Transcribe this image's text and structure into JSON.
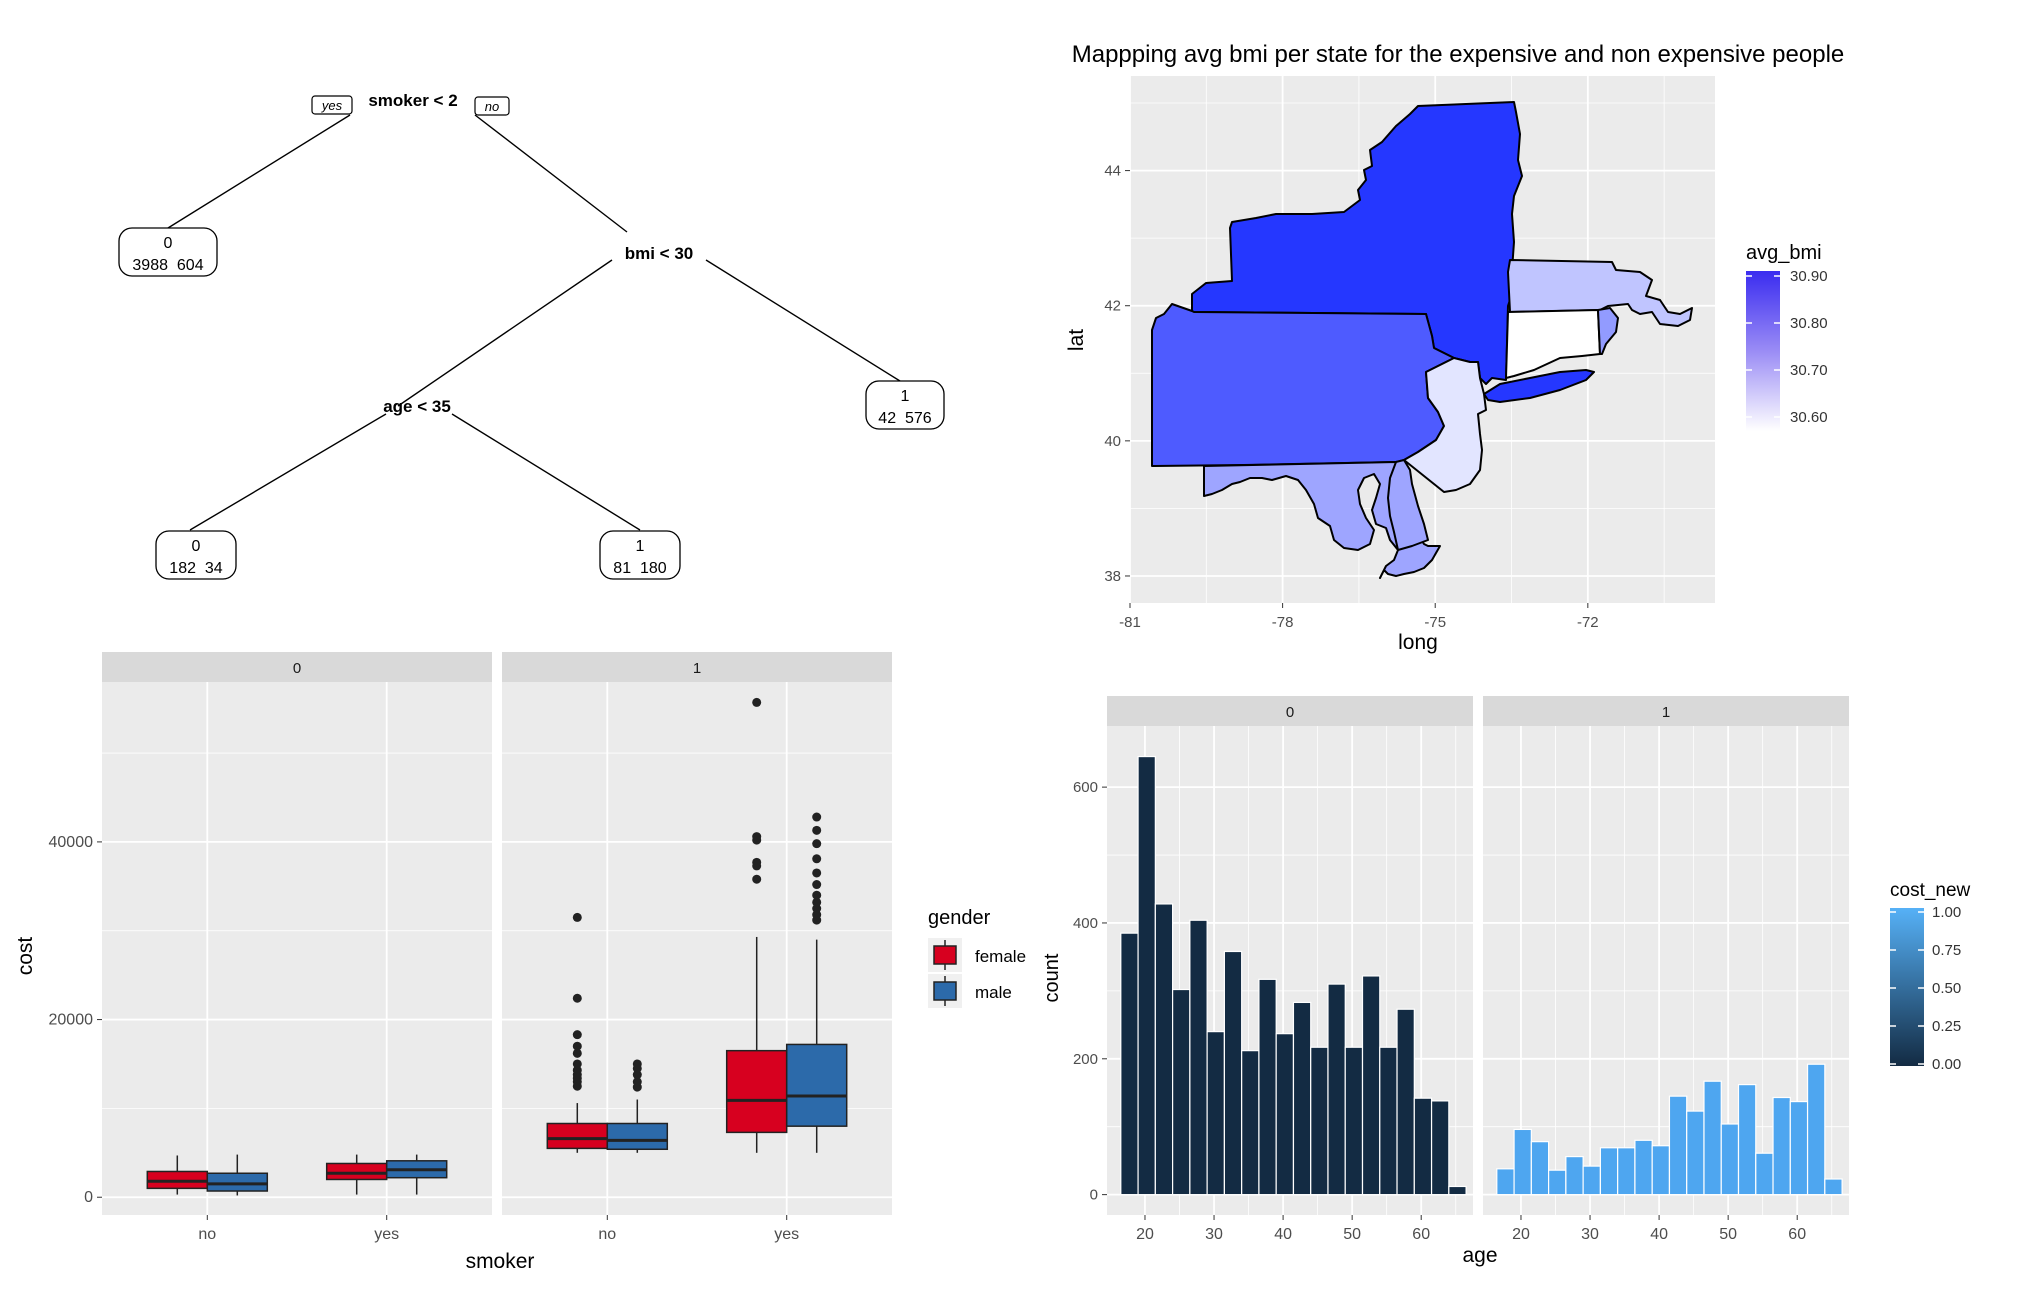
{
  "colors": {
    "panel_bg": "#ebebeb",
    "strip_bg": "#d9d9d9",
    "grid": "#ffffff",
    "female": "#d7001f",
    "male": "#2c6aaa",
    "hist_dark": "#132b43",
    "hist_light": "#4ea6f0",
    "map_high": "#1a2cff",
    "map_low": "#ffffff"
  },
  "chart_data": [
    {
      "type": "tree",
      "nodes": [
        {
          "id": "root",
          "split": "smoker < 2",
          "yes_label": "yes",
          "no_label": "no"
        },
        {
          "id": "bmi",
          "split": "bmi < 30"
        },
        {
          "id": "age",
          "split": "age < 35"
        },
        {
          "id": "leaf1",
          "class": "0",
          "counts": "3988  604"
        },
        {
          "id": "leaf2",
          "class": "1",
          "counts": "42  576"
        },
        {
          "id": "leaf3",
          "class": "0",
          "counts": "182  34"
        },
        {
          "id": "leaf4",
          "class": "1",
          "counts": "81  180"
        }
      ]
    },
    {
      "type": "map",
      "title": "Mappping avg bmi per state for the expensive and non expensive people",
      "xlabel": "long",
      "ylabel": "lat",
      "x_ticks": [
        "-81",
        "-78",
        "-75",
        "-72"
      ],
      "y_ticks": [
        "38",
        "40",
        "42",
        "44"
      ],
      "xlim": [
        -81,
        -69.5
      ],
      "ylim": [
        37.6,
        45.4
      ],
      "legend": {
        "title": "avg_bmi",
        "labels": [
          "30.90",
          "30.80",
          "30.70",
          "30.60"
        ],
        "position": "right"
      },
      "states": [
        {
          "name": "New York",
          "avg_bmi": 30.93
        },
        {
          "name": "Pennsylvania",
          "avg_bmi": 30.86
        },
        {
          "name": "Massachusetts",
          "avg_bmi": 30.66
        },
        {
          "name": "Maryland",
          "avg_bmi": 30.72
        },
        {
          "name": "New Jersey",
          "avg_bmi": 30.6
        },
        {
          "name": "Connecticut",
          "avg_bmi": 30.55
        },
        {
          "name": "Rhode Island",
          "avg_bmi": 30.74
        }
      ]
    },
    {
      "type": "box",
      "facets": [
        "0",
        "1"
      ],
      "categories": [
        "no",
        "yes"
      ],
      "xlabel": "smoker",
      "ylabel": "cost",
      "y_ticks": [
        "0",
        "20000",
        "40000"
      ],
      "ylim": [
        -2000,
        58000
      ],
      "legend": {
        "title": "gender",
        "entries": [
          "female",
          "male"
        ],
        "position": "right"
      },
      "boxes": [
        {
          "facet": "0",
          "smoker": "no",
          "gender": "female",
          "min": 300,
          "q1": 1000,
          "median": 1800,
          "q3": 2900,
          "max": 4700,
          "outliers": []
        },
        {
          "facet": "0",
          "smoker": "no",
          "gender": "male",
          "min": 200,
          "q1": 700,
          "median": 1500,
          "q3": 2700,
          "max": 4800,
          "outliers": []
        },
        {
          "facet": "0",
          "smoker": "yes",
          "gender": "female",
          "min": 300,
          "q1": 2000,
          "median": 2700,
          "q3": 3800,
          "max": 4800,
          "outliers": []
        },
        {
          "facet": "0",
          "smoker": "yes",
          "gender": "male",
          "min": 300,
          "q1": 2200,
          "median": 3100,
          "q3": 4100,
          "max": 4800,
          "outliers": []
        },
        {
          "facet": "1",
          "smoker": "no",
          "gender": "female",
          "min": 5000,
          "q1": 5500,
          "median": 6600,
          "q3": 8300,
          "max": 10600,
          "outliers": [
            12500,
            13000,
            13400,
            13800,
            14300,
            15000,
            16200,
            17000,
            18300,
            22400,
            31500
          ]
        },
        {
          "facet": "1",
          "smoker": "no",
          "gender": "male",
          "min": 5000,
          "q1": 5400,
          "median": 6400,
          "q3": 8300,
          "max": 11000,
          "outliers": [
            12400,
            13000,
            13800,
            14500,
            15000
          ]
        },
        {
          "facet": "1",
          "smoker": "yes",
          "gender": "female",
          "min": 5000,
          "q1": 7300,
          "median": 10900,
          "q3": 16500,
          "max": 29300,
          "outliers": [
            35800,
            37300,
            37700,
            40200,
            40600,
            55700
          ]
        },
        {
          "facet": "1",
          "smoker": "yes",
          "gender": "male",
          "min": 5000,
          "q1": 8000,
          "median": 11400,
          "q3": 17200,
          "max": 29000,
          "outliers": [
            31200,
            31800,
            32500,
            33200,
            34000,
            35200,
            36500,
            38100,
            39800,
            41300,
            42800
          ]
        }
      ]
    },
    {
      "type": "histogram",
      "facets": [
        "0",
        "1"
      ],
      "xlabel": "age",
      "ylabel": "count",
      "x_ticks": [
        "20",
        "30",
        "40",
        "50",
        "60"
      ],
      "y_ticks": [
        "0",
        "200",
        "400",
        "600"
      ],
      "xlim": [
        14.5,
        67.5
      ],
      "ylim": [
        -30,
        690
      ],
      "bin_width": 2.5,
      "bin_starts": [
        16.5,
        19,
        21.5,
        24,
        26.5,
        29,
        31.5,
        34,
        36.5,
        39,
        41.5,
        44,
        46.5,
        49,
        51.5,
        54,
        56.5,
        59,
        61.5,
        64
      ],
      "legend": {
        "title": "cost_new",
        "labels": [
          "1.00",
          "0.75",
          "0.50",
          "0.25",
          "0.00"
        ],
        "position": "right"
      },
      "series": [
        {
          "name": "0",
          "values": [
            385,
            645,
            428,
            302,
            404,
            240,
            358,
            212,
            317,
            237,
            283,
            217,
            310,
            217,
            322,
            217,
            273,
            142,
            138,
            12
          ]
        },
        {
          "name": "1",
          "values": [
            38,
            96,
            78,
            36,
            56,
            42,
            69,
            69,
            80,
            72,
            145,
            123,
            167,
            104,
            162,
            61,
            143,
            137,
            192,
            23
          ]
        }
      ]
    }
  ]
}
